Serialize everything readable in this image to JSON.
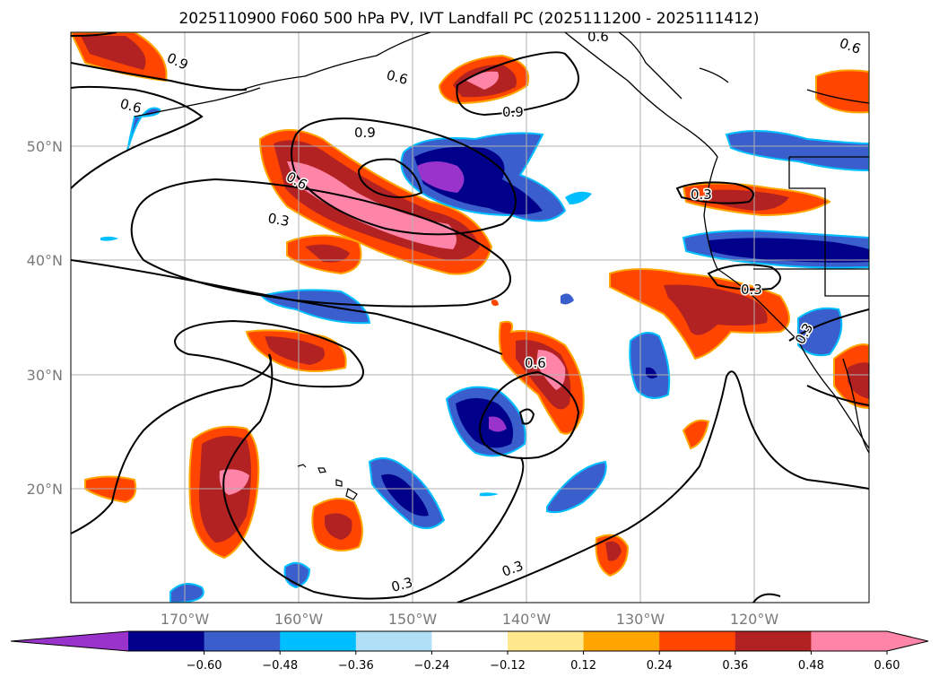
{
  "title": "2025110900 F060 500 hPa PV, IVT Landfall PC (2025111200 - 2025111412)",
  "lat_labels": [
    "50°N",
    "40°N",
    "30°N",
    "20°N"
  ],
  "lon_labels": [
    "170°W",
    "160°W",
    "150°W",
    "140°W",
    "130°W",
    "120°W"
  ],
  "colorbar": {
    "ticks": [
      "−0.60",
      "−0.48",
      "−0.36",
      "−0.24",
      "−0.12",
      "0.12",
      "0.24",
      "0.36",
      "0.48",
      "0.60"
    ],
    "colors": [
      "#9933cc",
      "#00008b",
      "#3a5fcd",
      "#00bfff",
      "#b0e0f8",
      "#ffffff",
      "#ffe98c",
      "#ffa500",
      "#ff4500",
      "#b22222",
      "#ff85a8",
      "#ff85a8"
    ]
  },
  "contour_labels": {
    "a": "0.9",
    "b": "0.6",
    "c": "0.6",
    "d": "0.9",
    "e": "0.9",
    "f": "0.6",
    "g": "0.3",
    "h": "0.6",
    "i": "0.3",
    "j": "0.3",
    "k": "0.3",
    "l": "0.3",
    "m": "0.3",
    "n": "0.6",
    "o": "0.6"
  },
  "map": {
    "lat_range": [
      10,
      60
    ],
    "lon_range": [
      -180,
      -110
    ],
    "land_color": "#ffffff",
    "coastline_color": "#000000",
    "grid_color": "#b0b0b0"
  }
}
